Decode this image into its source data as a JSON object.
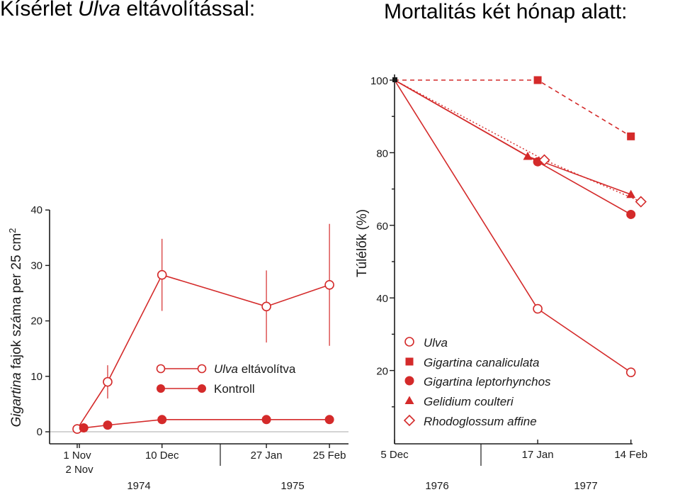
{
  "headings": {
    "left_pre": "Kísérlet ",
    "left_italic": "Ulva",
    "left_post": " eltávolítással:",
    "right": "Mortalitás két hónap alatt:"
  },
  "colors": {
    "series": "#d42a2a",
    "axis": "#1a1a1a"
  },
  "chart_data": [
    {
      "type": "line",
      "ylabel_italic": "Gigartina",
      "ylabel_rest": " fajok száma per 25 cm",
      "ylabel_sup": "2",
      "ylim": [
        0,
        40
      ],
      "yticks": [
        0,
        10,
        20,
        30,
        40
      ],
      "x_ticks": [
        {
          "label": "1 Nov",
          "x": 0
        },
        {
          "label": "2 Nov",
          "x": 1
        },
        {
          "label": "10 Dec",
          "x": 39
        },
        {
          "label": "27 Jan",
          "x": 87
        },
        {
          "label": "25 Feb",
          "x": 116
        }
      ],
      "years": [
        "1974",
        "1975"
      ],
      "series": [
        {
          "name": "Ulva eltávolítva",
          "name_italic": "Ulva",
          "name_rest": " eltávolítva",
          "marker": "open-circle",
          "points": [
            {
              "x": 0,
              "y": 0.5
            },
            {
              "x": 14,
              "y": 9,
              "err": 3
            },
            {
              "x": 39,
              "y": 28.3,
              "err": 6.5
            },
            {
              "x": 87,
              "y": 22.6,
              "err": 6.5
            },
            {
              "x": 116,
              "y": 26.5,
              "err": 11
            }
          ]
        },
        {
          "name": "Kontroll",
          "marker": "filled-circle",
          "points": [
            {
              "x": 3,
              "y": 0.7
            },
            {
              "x": 14,
              "y": 1.2
            },
            {
              "x": 39,
              "y": 2.2
            },
            {
              "x": 87,
              "y": 2.2
            },
            {
              "x": 116,
              "y": 2.2
            }
          ]
        }
      ]
    },
    {
      "type": "line",
      "ylabel": "Túlélők (%)",
      "ylim": [
        0,
        100
      ],
      "yticks": [
        20,
        40,
        60,
        80,
        100
      ],
      "x_ticks": [
        {
          "label": "5 Dec",
          "x": 0
        },
        {
          "label": "17 Jan",
          "x": 43
        },
        {
          "label": "14 Feb",
          "x": 71
        }
      ],
      "years": [
        "1976",
        "1977"
      ],
      "series": [
        {
          "name": "Ulva",
          "italic": true,
          "marker": "open-circle",
          "dash": false,
          "points": [
            {
              "x": 0,
              "y": 100
            },
            {
              "x": 43,
              "y": 37
            },
            {
              "x": 71,
              "y": 19.5
            }
          ]
        },
        {
          "name": "Gigartina canaliculata",
          "italic": true,
          "marker": "filled-square",
          "dash": true,
          "points": [
            {
              "x": 0,
              "y": 100
            },
            {
              "x": 43,
              "y": 100
            },
            {
              "x": 71,
              "y": 84.5
            }
          ]
        },
        {
          "name": "Gigartina leptorhynchos",
          "italic": true,
          "marker": "filled-circle",
          "dash": false,
          "points": [
            {
              "x": 0,
              "y": 100
            },
            {
              "x": 43,
              "y": 77.5
            },
            {
              "x": 71,
              "y": 63
            }
          ]
        },
        {
          "name": "Gelidium coulteri",
          "italic": true,
          "marker": "filled-triangle",
          "dash": false,
          "points": [
            {
              "x": 0,
              "y": 100
            },
            {
              "x": 40,
              "y": 79
            },
            {
              "x": 71,
              "y": 68.5
            }
          ]
        },
        {
          "name": "Rhodoglossum affine",
          "italic": true,
          "marker": "open-diamond",
          "dash": "dotted",
          "points": [
            {
              "x": 0,
              "y": 100
            },
            {
              "x": 45,
              "y": 78
            },
            {
              "x": 74,
              "y": 66.5
            }
          ]
        }
      ]
    }
  ]
}
